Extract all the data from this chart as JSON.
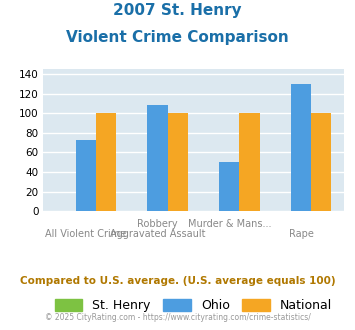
{
  "title_line1": "2007 St. Henry",
  "title_line2": "Violent Crime Comparison",
  "st_henry": [
    0,
    0,
    0,
    0
  ],
  "ohio": [
    73,
    109,
    50,
    130
  ],
  "national": [
    100,
    100,
    100,
    100
  ],
  "bar_width": 0.28,
  "ylim": [
    0,
    145
  ],
  "yticks": [
    0,
    20,
    40,
    60,
    80,
    100,
    120,
    140
  ],
  "color_st_henry": "#7dc242",
  "color_ohio": "#4d9de0",
  "color_national": "#f5a623",
  "color_title": "#1a6fa8",
  "color_bg_chart": "#dce8f0",
  "color_bg_fig": "#ffffff",
  "color_grid": "#ffffff",
  "color_xlabel_top": "#888888",
  "color_xlabel_bot": "#888888",
  "color_footnote": "#b07800",
  "color_copyright": "#999999",
  "x_top_labels": [
    "",
    "Robbery",
    "Murder & Mans...",
    ""
  ],
  "x_bot_labels": [
    "All Violent Crime",
    "Aggravated Assault",
    "",
    "Rape"
  ],
  "legend_labels": [
    "St. Henry",
    "Ohio",
    "National"
  ],
  "footnote": "Compared to U.S. average. (U.S. average equals 100)",
  "copyright": "© 2025 CityRating.com - https://www.cityrating.com/crime-statistics/"
}
